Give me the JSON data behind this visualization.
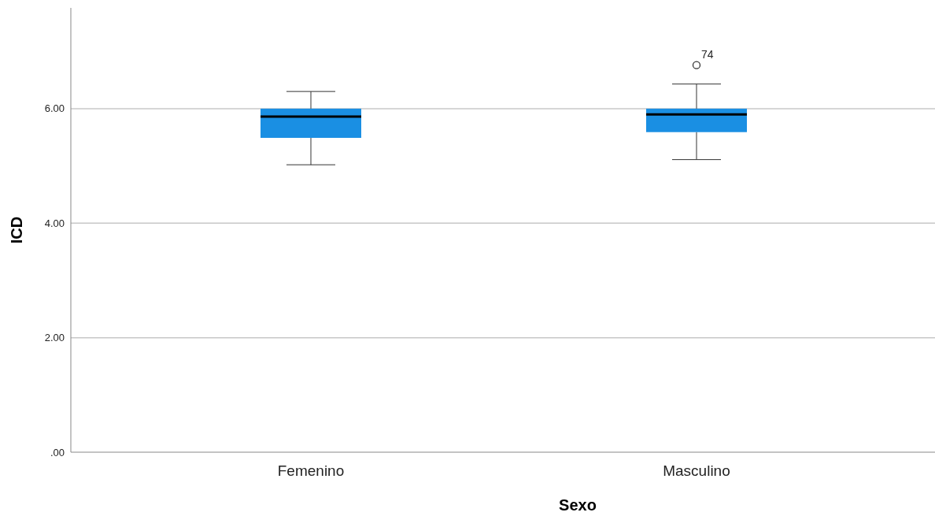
{
  "chart_data": {
    "type": "box",
    "xlabel": "Sexo",
    "ylabel": "ICD",
    "categories": [
      "Femenino",
      "Masculino"
    ],
    "series": [
      {
        "color": "#1a8fe3",
        "boxes": [
          {
            "low": 5.02,
            "q1": 5.49,
            "median": 5.86,
            "q3": 6.0,
            "high": 6.3
          },
          {
            "low": 5.11,
            "q1": 5.59,
            "median": 5.9,
            "q3": 6.0,
            "high": 6.43,
            "outliers": [
              6.76
            ]
          }
        ]
      }
    ],
    "ylim": [
      0,
      7.76
    ],
    "yticks": [
      {
        "value": 0,
        "label": ".00"
      },
      {
        "value": 2,
        "label": "2.00"
      },
      {
        "value": 4,
        "label": "4.00"
      },
      {
        "value": 6,
        "label": "6.00"
      }
    ],
    "grid": "y",
    "annotations": [
      "74"
    ]
  }
}
